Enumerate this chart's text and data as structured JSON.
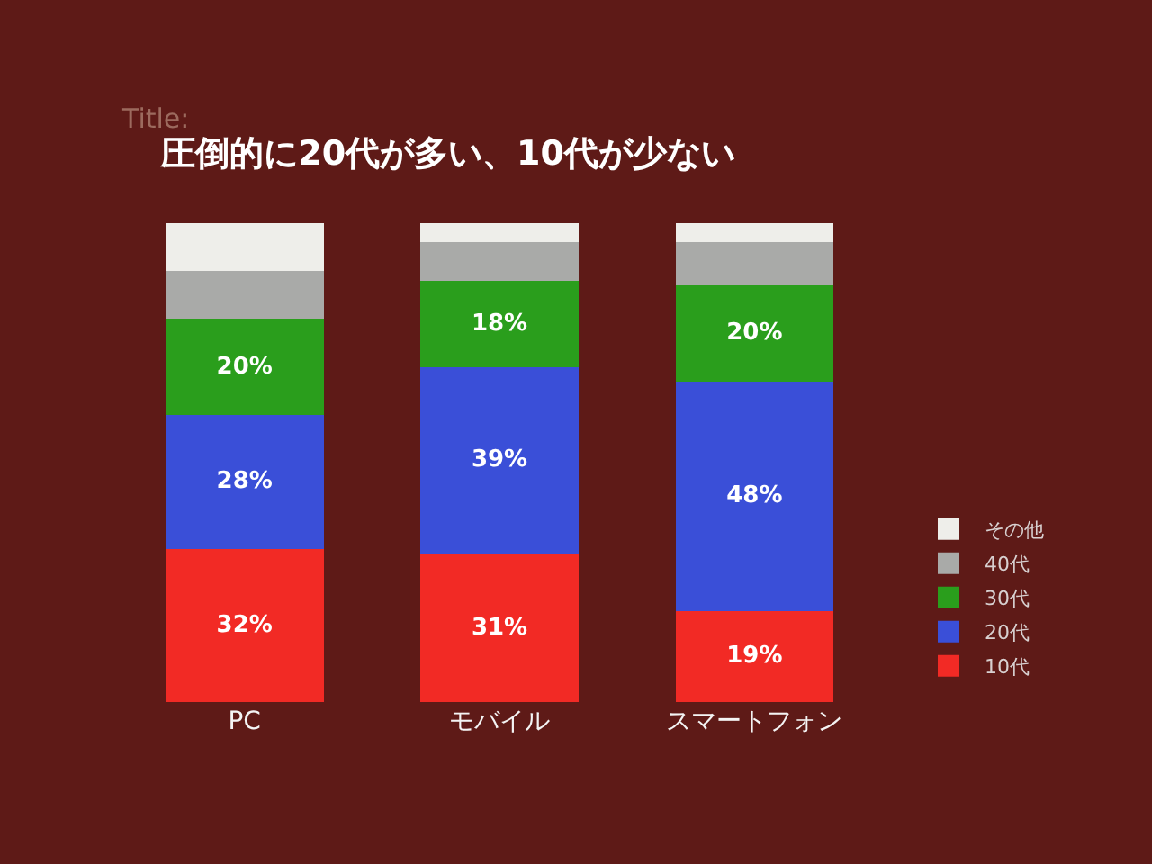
{
  "chart_data": {
    "type": "bar",
    "title": "圧倒的に20代が多い、10代が少ない",
    "annotations": [
      "Title:"
    ],
    "categories": [
      "PC",
      "モバイル",
      "スマートフォン"
    ],
    "stacked": true,
    "tick_labels": "x",
    "legend": "bottom right",
    "series": [
      {
        "name": "10代",
        "color": "#f22a25",
        "values": [
          32,
          31,
          19
        ],
        "value_labels": [
          "32%",
          "31%",
          "19%"
        ]
      },
      {
        "name": "20代",
        "color": "#3a4fd8",
        "values": [
          28,
          39,
          48
        ],
        "value_labels": [
          "28%",
          "39%",
          "48%"
        ]
      },
      {
        "name": "30代",
        "color": "#2a9e1c",
        "values": [
          20,
          18,
          20
        ],
        "value_labels": [
          "20%",
          "18%",
          "20%"
        ]
      },
      {
        "name": "40代",
        "color": "#a9aaa8",
        "values": [
          10,
          8,
          9
        ]
      },
      {
        "name": "その他",
        "color": "#eeeeea",
        "values": [
          10,
          4,
          4
        ]
      }
    ]
  }
}
